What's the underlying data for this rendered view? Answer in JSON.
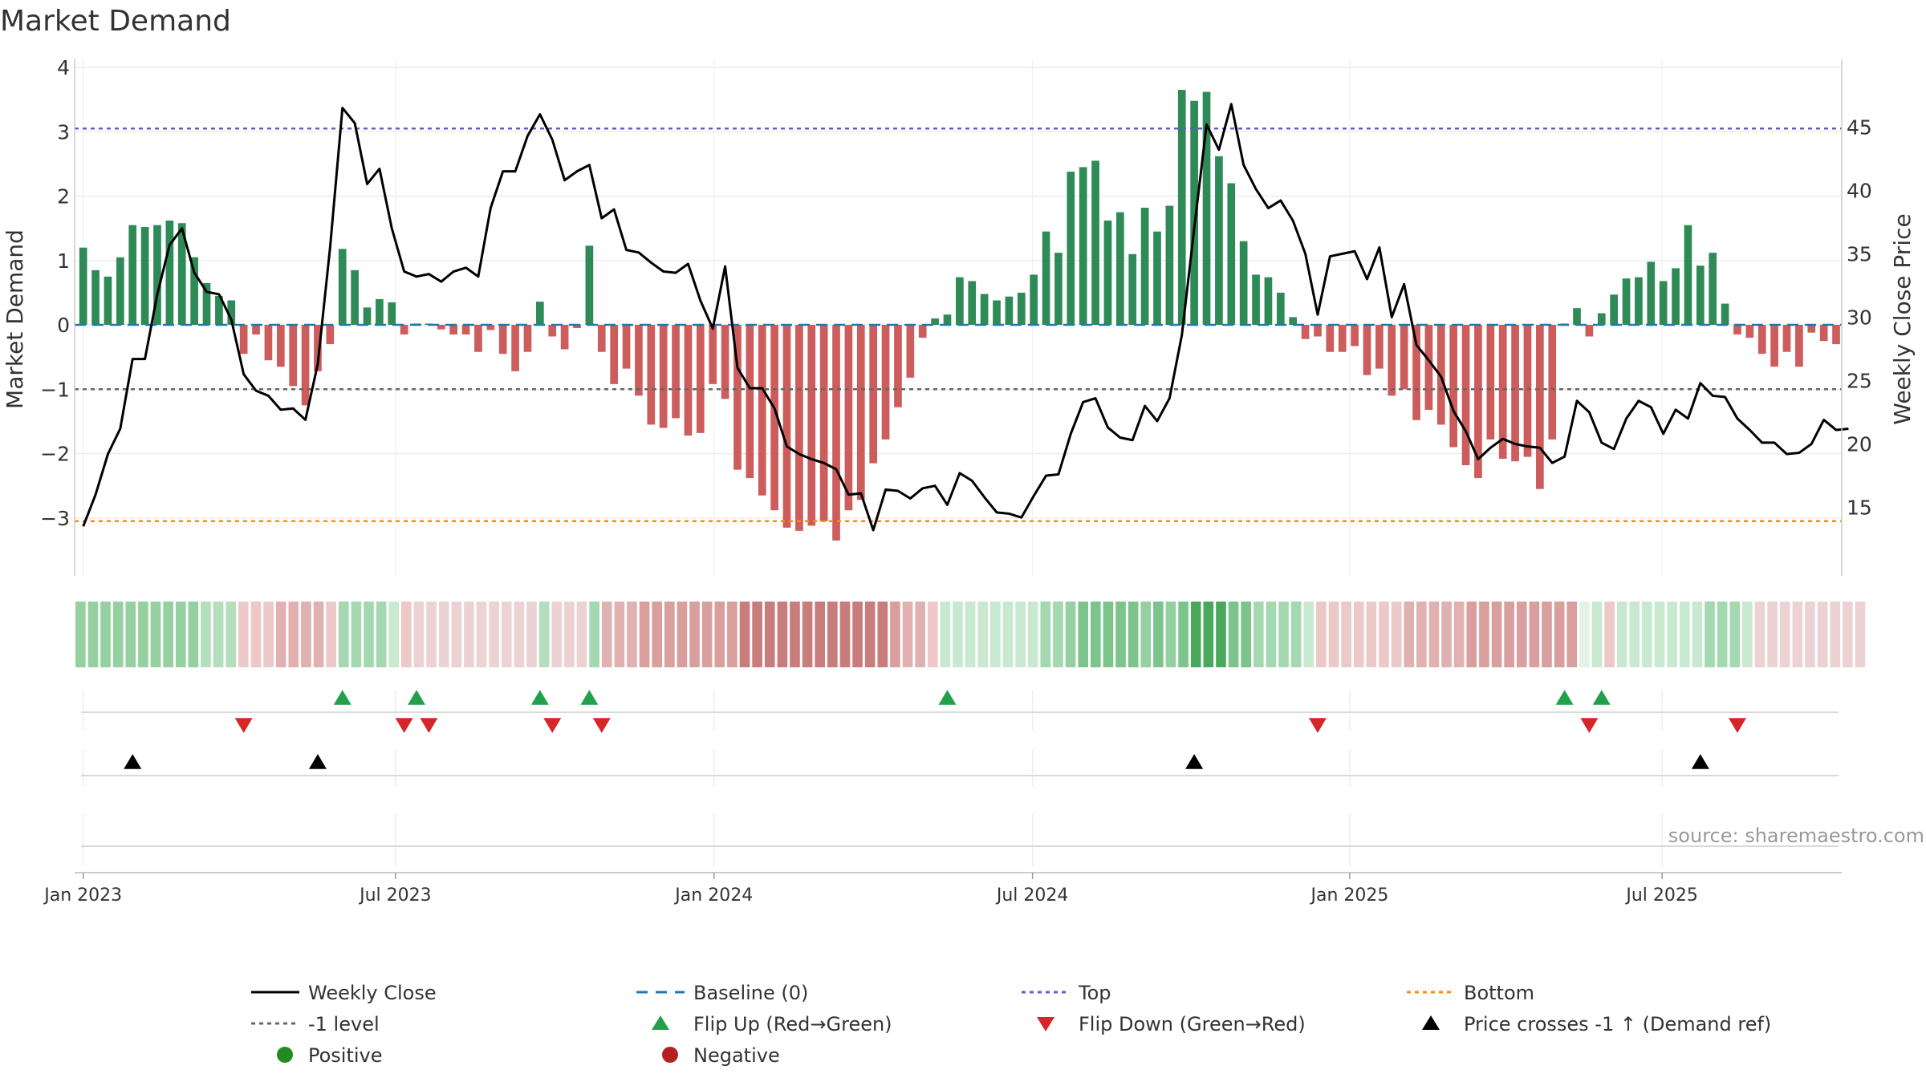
{
  "chart_data": {
    "type": "bar",
    "title": "Market Demand",
    "ylabel_left": "Market Demand",
    "ylabel_right": "Weekly Close Price",
    "source": "source: sharemaestro.com",
    "left_yaxis": {
      "range": [
        -3.8,
        4.0
      ],
      "ticks": [
        -3,
        -2,
        -1,
        0,
        1,
        2,
        3,
        4
      ],
      "tick_labels": [
        "−3",
        "−2",
        "−1",
        "0",
        "1",
        "2",
        "3",
        "4"
      ]
    },
    "right_yaxis": {
      "range": [
        10.1,
        49.7
      ],
      "ticks": [
        15,
        20,
        25,
        30,
        35,
        40,
        45
      ],
      "tick_labels": [
        "15",
        "20",
        "25",
        "30",
        "35",
        "40",
        "45"
      ]
    },
    "x_axis": {
      "start": "2022-12-26",
      "week_count": 141,
      "ticks": [
        {
          "week": 1,
          "label": "Jan 2023"
        },
        {
          "week": 26.3,
          "label": "Jul 2023"
        },
        {
          "week": 52.1,
          "label": "Jan 2024"
        },
        {
          "week": 77.9,
          "label": "Jul 2024"
        },
        {
          "week": 103.6,
          "label": "Jan 2025"
        },
        {
          "week": 128.9,
          "label": "Jul 2025"
        }
      ]
    },
    "reference_lines": {
      "top": 3.05,
      "bottom": -3.05,
      "minus_one": -1.0,
      "baseline": 0
    },
    "demand": [
      1.2,
      0.85,
      0.75,
      1.05,
      1.55,
      1.52,
      1.55,
      1.62,
      1.58,
      1.05,
      0.65,
      0.45,
      0.38,
      -0.45,
      -0.15,
      -0.55,
      -0.65,
      -0.95,
      -1.25,
      -0.72,
      -0.3,
      1.18,
      0.85,
      0.27,
      0.4,
      0.35,
      -0.15,
      0.02,
      0.02,
      -0.07,
      -0.15,
      -0.15,
      -0.42,
      -0.08,
      -0.45,
      -0.72,
      -0.42,
      0.36,
      -0.18,
      -0.38,
      -0.05,
      1.23,
      -0.42,
      -0.92,
      -0.68,
      -1.1,
      -1.55,
      -1.6,
      -1.45,
      -1.72,
      -1.68,
      -0.92,
      -1.15,
      -2.25,
      -2.38,
      -2.65,
      -2.88,
      -3.15,
      -3.2,
      -3.12,
      -3.05,
      -3.35,
      -2.88,
      -2.72,
      -2.15,
      -1.78,
      -1.28,
      -0.82,
      -0.2,
      0.1,
      0.16,
      0.74,
      0.68,
      0.48,
      0.38,
      0.44,
      0.5,
      0.78,
      1.45,
      1.12,
      2.38,
      2.45,
      2.55,
      1.62,
      1.75,
      1.1,
      1.82,
      1.45,
      1.85,
      3.65,
      3.48,
      3.62,
      2.62,
      2.2,
      1.3,
      0.78,
      0.74,
      0.5,
      0.12,
      -0.22,
      -0.18,
      -0.42,
      -0.42,
      -0.33,
      -0.78,
      -0.68,
      -1.1,
      -1.0,
      -1.48,
      -1.32,
      -1.55,
      -1.9,
      -2.18,
      -2.38,
      -1.78,
      -2.08,
      -2.12,
      -2.05,
      -2.55,
      -1.78,
      0.02,
      0.26,
      -0.18,
      0.18,
      0.47,
      0.72,
      0.74,
      0.98,
      0.68,
      0.88,
      1.55,
      0.92,
      1.12,
      0.33,
      -0.15,
      -0.2,
      -0.45,
      -0.65,
      -0.42,
      -0.65,
      -0.12,
      -0.25,
      -0.3
    ],
    "weekly_close": [
      13.5,
      16.0,
      19.2,
      21.2,
      26.7,
      26.7,
      31.8,
      35.7,
      37.0,
      33.5,
      32.0,
      31.8,
      29.8,
      25.5,
      24.2,
      23.8,
      22.7,
      22.8,
      21.9,
      26.3,
      35.5,
      46.5,
      45.3,
      40.5,
      41.7,
      37.0,
      33.6,
      33.2,
      33.4,
      32.8,
      33.6,
      33.9,
      33.2,
      38.6,
      41.5,
      41.5,
      44.3,
      46.0,
      44.0,
      40.8,
      41.5,
      42.0,
      37.8,
      38.5,
      35.3,
      35.1,
      34.3,
      33.6,
      33.5,
      34.2,
      31.3,
      29.1,
      34.0,
      26.0,
      24.4,
      24.4,
      22.8,
      19.8,
      19.2,
      18.8,
      18.5,
      18.0,
      16.0,
      16.1,
      13.2,
      16.4,
      16.3,
      15.7,
      16.5,
      16.7,
      15.2,
      17.7,
      17.1,
      15.8,
      14.6,
      14.5,
      14.2,
      15.9,
      17.5,
      17.6,
      20.8,
      23.3,
      23.6,
      21.3,
      20.5,
      20.3,
      23.0,
      21.8,
      23.6,
      28.6,
      37.0,
      45.2,
      43.2,
      46.8,
      42.0,
      40.1,
      38.6,
      39.2,
      37.6,
      35.0,
      30.2,
      34.8,
      35.0,
      35.2,
      33.0,
      35.5,
      30.0,
      32.6,
      27.8,
      26.6,
      25.3,
      22.6,
      21.0,
      18.8,
      19.7,
      20.4,
      20.0,
      19.8,
      19.7,
      18.5,
      19.0,
      23.4,
      22.5,
      20.1,
      19.6,
      22.0,
      23.4,
      22.9,
      20.8,
      22.7,
      22.0,
      24.8,
      23.8,
      23.7,
      22.0,
      21.1,
      20.1,
      20.1,
      19.2,
      19.3,
      20.0,
      21.9,
      21.1,
      21.2
    ],
    "heat_strip_colors": [
      "#94d0a0",
      "#94d0a0",
      "#94d0a0",
      "#94d0a0",
      "#94d0a0",
      "#94d0a0",
      "#94d0a0",
      "#94d0a0",
      "#94d0a0",
      "#94d0a0",
      "#b4dfbc",
      "#b4dfbc",
      "#b4dfbc",
      "#ecc8c8",
      "#ecc8c8",
      "#ecc8c8",
      "#e1b0b0",
      "#e1b0b0",
      "#e1b0b0",
      "#e1b0b0",
      "#ecc8c8",
      "#a4d8b0",
      "#a4d8b0",
      "#a4d8b0",
      "#a4d8b0",
      "#c8e8cf",
      "#ecc8c8",
      "#ecd2d2",
      "#ecd2d2",
      "#ecd2d2",
      "#ecd2d2",
      "#ecd2d2",
      "#ecd2d2",
      "#ecd2d2",
      "#ecd2d2",
      "#ecd2d2",
      "#ecd2d2",
      "#b4dfbc",
      "#ecd2d2",
      "#ecd2d2",
      "#ecd2d2",
      "#a4d8b0",
      "#e1b0b0",
      "#e1b0b0",
      "#e1b0b0",
      "#d99e9e",
      "#d99e9e",
      "#d99e9e",
      "#d99e9e",
      "#d99e9e",
      "#d99e9e",
      "#d99e9e",
      "#d99e9e",
      "#c97c7c",
      "#c97c7c",
      "#c97c7c",
      "#c97c7c",
      "#c97c7c",
      "#c97c7c",
      "#c97c7c",
      "#c97c7c",
      "#c97c7c",
      "#c97c7c",
      "#c97c7c",
      "#c97c7c",
      "#d99e9e",
      "#e1b0b0",
      "#e1b0b0",
      "#ecc8c8",
      "#c8e8cf",
      "#c8e8cf",
      "#c8e8cf",
      "#c8e8cf",
      "#c8e8cf",
      "#c8e8cf",
      "#c8e8cf",
      "#c8e8cf",
      "#a4d8b0",
      "#a4d8b0",
      "#94d0a0",
      "#7cc48c",
      "#7cc48c",
      "#7cc48c",
      "#7cc48c",
      "#7cc48c",
      "#94d0a0",
      "#7cc48c",
      "#94d0a0",
      "#7cc48c",
      "#4aa85c",
      "#4aa85c",
      "#4aa85c",
      "#7cc48c",
      "#7cc48c",
      "#a4d8b0",
      "#a4d8b0",
      "#a4d8b0",
      "#a4d8b0",
      "#c8e8cf",
      "#ecc8c8",
      "#ecc8c8",
      "#ecc8c8",
      "#ecc8c8",
      "#ecc8c8",
      "#ecc8c8",
      "#ecc8c8",
      "#e1b0b0",
      "#e1b0b0",
      "#e1b0b0",
      "#e1b0b0",
      "#e1b0b0",
      "#d99e9e",
      "#d99e9e",
      "#d99e9e",
      "#d99e9e",
      "#d99e9e",
      "#d99e9e",
      "#d99e9e",
      "#d99e9e",
      "#d99e9e",
      "#e4f2e7",
      "#c8e8cf",
      "#ecc8c8",
      "#c8e8cf",
      "#c8e8cf",
      "#c8e8cf",
      "#c8e8cf",
      "#c8e8cf",
      "#c8e8cf",
      "#c8e8cf",
      "#a4d8b0",
      "#a4d8b0",
      "#a4d8b0",
      "#c8e8cf",
      "#ecd2d2",
      "#ecd2d2",
      "#ecd2d2",
      "#ecd2d2",
      "#ecd2d2",
      "#ecd2d2",
      "#ecd2d2",
      "#ecd2d2",
      "#ecd2d2"
    ],
    "flip_up_weeks": [
      21,
      27,
      37,
      41,
      70,
      120,
      123
    ],
    "flip_down_weeks": [
      13,
      26,
      28,
      38,
      42,
      100,
      122,
      134
    ],
    "price_cross_weeks": [
      4,
      19,
      90,
      131
    ],
    "legend": [
      {
        "label": "Weekly Close",
        "symbol": "line-solid"
      },
      {
        "label": "Baseline (0)",
        "symbol": "line-dash"
      },
      {
        "label": "Top",
        "symbol": "line-dot-blue"
      },
      {
        "label": "Bottom",
        "symbol": "line-dot-orange"
      },
      {
        "label": "-1 level",
        "symbol": "line-dot-gray"
      },
      {
        "label": "Flip Up (Red→Green)",
        "symbol": "triangle-up-green"
      },
      {
        "label": "Flip Down (Green→Red)",
        "symbol": "triangle-down-red"
      },
      {
        "label": "Price crosses -1 ↑ (Demand ref)",
        "symbol": "triangle-up-black"
      },
      {
        "label": "Positive",
        "symbol": "dot-green"
      },
      {
        "label": "Negative",
        "symbol": "dot-red"
      }
    ],
    "legend_position": "bottom"
  },
  "colors": {
    "positive_bar": "#2e8b57",
    "negative_bar": "#cd5c5c",
    "weekly_close": "#000000",
    "baseline": "#1f77b4",
    "top_line": "#6a5acd",
    "bottom_line": "#ff8c00",
    "minus_one_line": "#666666",
    "flip_up": "#22a04b",
    "flip_down": "#d62728",
    "price_cross": "#000000",
    "positive_dot": "#228b22",
    "negative_dot": "#b22222",
    "grid": "#ececec",
    "axis": "#cccccc"
  }
}
